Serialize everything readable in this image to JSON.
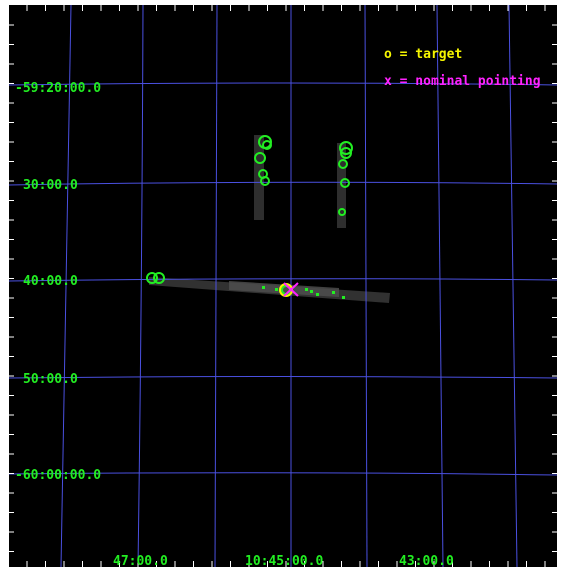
{
  "legend": {
    "target": "o = target",
    "nominal_pointing": "x = nominal pointing"
  },
  "dec_labels": [
    "-59:20:00.0",
    "30:00.0",
    "40:00.0",
    "50:00.0",
    "-60:00:00.0"
  ],
  "ra_labels": [
    "47:00.0",
    "10:45:00.0",
    "43:00.0"
  ],
  "colors": {
    "background": "#000000",
    "grid": "#4a50e0",
    "labels": "#22ee22",
    "target_marker": "#f5f500",
    "pointing_marker": "#ff22ff",
    "sources": "#22ee22"
  }
}
